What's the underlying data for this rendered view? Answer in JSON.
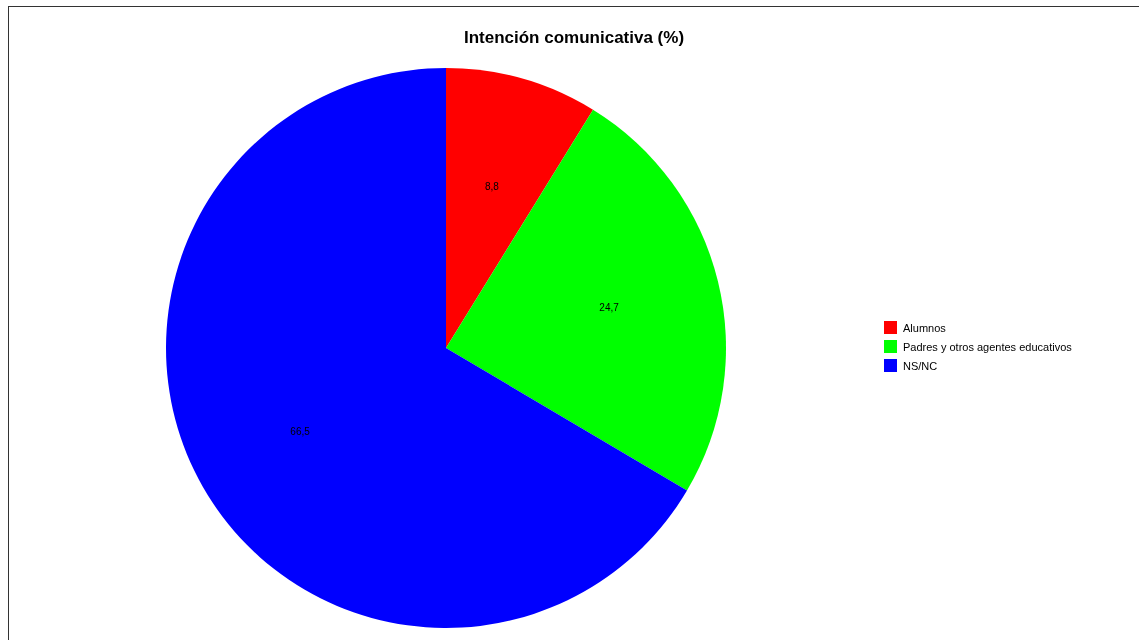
{
  "chart_data": {
    "type": "pie",
    "title": "Intención comunicativa (%)",
    "categories": [
      "Alumnos",
      "Padres y otros agentes educativos",
      "NS/NC"
    ],
    "values": [
      8.8,
      24.7,
      66.5
    ],
    "colors": [
      "#ff0000",
      "#00ff00",
      "#0000ff"
    ],
    "value_labels": [
      "8,8",
      "24,7",
      "66,5"
    ],
    "legend": "right"
  }
}
